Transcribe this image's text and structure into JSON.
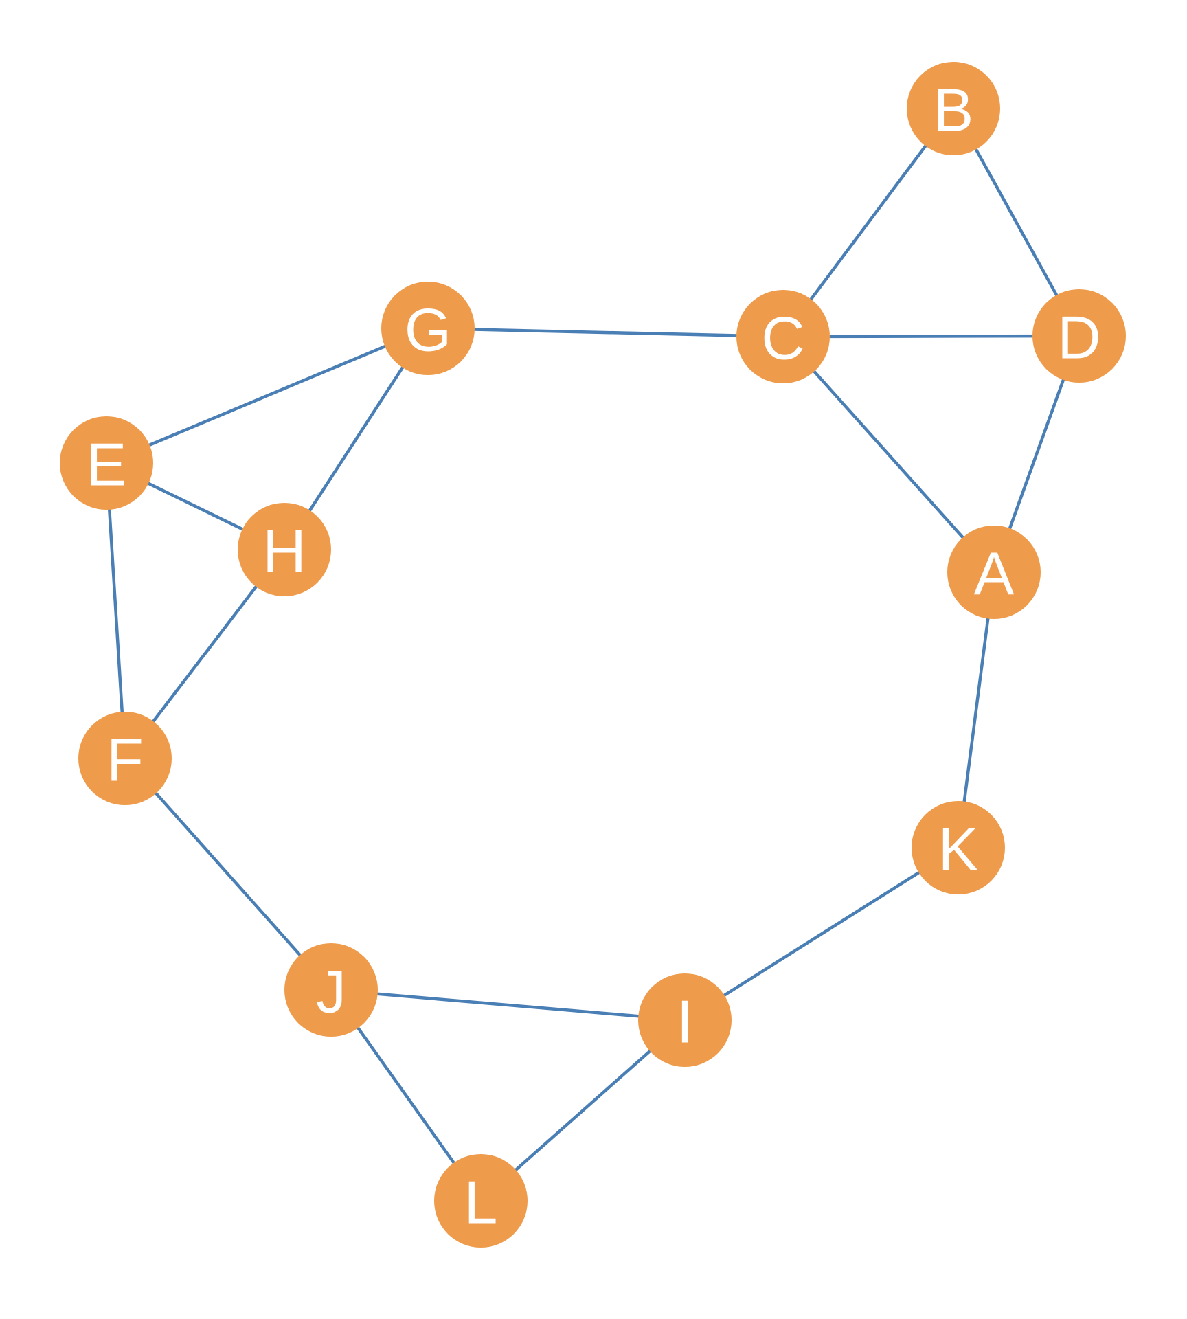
{
  "colors": {
    "background": "#ffffff",
    "node_fill": "#EE9B4B",
    "edge_stroke": "#4A7FB5",
    "label_color": "#ffffff"
  },
  "nodes": [
    {
      "id": "A",
      "label": "A"
    },
    {
      "id": "B",
      "label": "B"
    },
    {
      "id": "C",
      "label": "C"
    },
    {
      "id": "D",
      "label": "D"
    },
    {
      "id": "E",
      "label": "E"
    },
    {
      "id": "F",
      "label": "F"
    },
    {
      "id": "G",
      "label": "G"
    },
    {
      "id": "H",
      "label": "H"
    },
    {
      "id": "I",
      "label": "I"
    },
    {
      "id": "J",
      "label": "J"
    },
    {
      "id": "K",
      "label": "K"
    },
    {
      "id": "L",
      "label": "L"
    }
  ],
  "edges": [
    {
      "source": "B",
      "target": "C"
    },
    {
      "source": "B",
      "target": "D"
    },
    {
      "source": "C",
      "target": "D"
    },
    {
      "source": "G",
      "target": "C"
    },
    {
      "source": "C",
      "target": "A"
    },
    {
      "source": "D",
      "target": "A"
    },
    {
      "source": "A",
      "target": "K"
    },
    {
      "source": "K",
      "target": "I"
    },
    {
      "source": "J",
      "target": "I"
    },
    {
      "source": "I",
      "target": "L"
    },
    {
      "source": "J",
      "target": "L"
    },
    {
      "source": "F",
      "target": "J"
    },
    {
      "source": "E",
      "target": "F"
    },
    {
      "source": "H",
      "target": "F"
    },
    {
      "source": "E",
      "target": "H"
    },
    {
      "source": "E",
      "target": "G"
    },
    {
      "source": "G",
      "target": "H"
    }
  ]
}
